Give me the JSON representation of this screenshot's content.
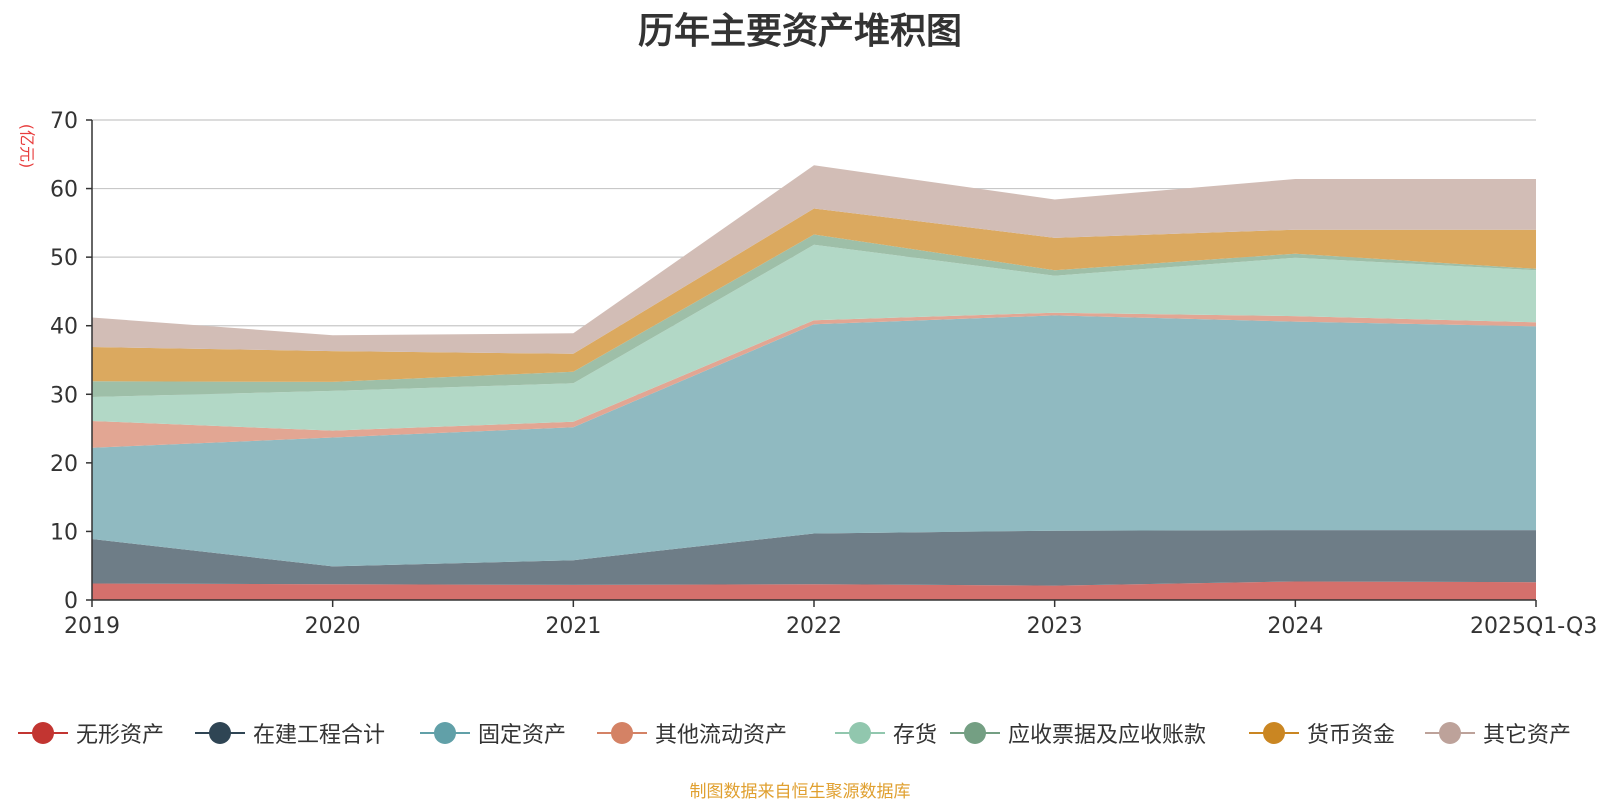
{
  "title": "历年主要资产堆积图",
  "unit_label": "(亿元)",
  "source_note": "制图数据来自恒生聚源数据库",
  "chart_data": {
    "type": "area",
    "stacked": true,
    "title": "历年主要资产堆积图",
    "ylabel": "(亿元)",
    "ylim": [
      0,
      70
    ],
    "yticks": [
      0,
      10,
      20,
      30,
      40,
      50,
      60,
      70
    ],
    "grid": true,
    "legend_position": "bottom",
    "categories": [
      "2019",
      "2020",
      "2021",
      "2022",
      "2023",
      "2024",
      "2025Q1-Q3"
    ],
    "series": [
      {
        "name": "无形资产",
        "color": "#c23531",
        "fill": "#d4706c",
        "values": [
          2.4,
          2.3,
          2.2,
          2.3,
          2.1,
          2.7,
          2.6
        ]
      },
      {
        "name": "在建工程合计",
        "color": "#2f4554",
        "fill": "#6e7d87",
        "values": [
          6.5,
          2.6,
          3.6,
          7.4,
          8.0,
          7.5,
          7.6
        ]
      },
      {
        "name": "固定资产",
        "color": "#61a0a8",
        "fill": "#90bac1",
        "values": [
          13.3,
          18.8,
          19.4,
          30.5,
          31.4,
          30.4,
          29.7
        ]
      },
      {
        "name": "其他流动资产",
        "color": "#d48265",
        "fill": "#e2a693",
        "values": [
          3.9,
          1.0,
          0.8,
          0.6,
          0.4,
          0.8,
          0.6
        ]
      },
      {
        "name": "存货",
        "color": "#91c7ae",
        "fill": "#b2d8c6",
        "values": [
          3.5,
          5.8,
          5.6,
          11.0,
          5.4,
          8.5,
          7.6
        ]
      },
      {
        "name": "应收票据及应收账款",
        "color": "#749f83",
        "fill": "#9ebfa8",
        "values": [
          2.3,
          1.3,
          1.7,
          1.5,
          0.8,
          0.6,
          0.2
        ]
      },
      {
        "name": "货币资金",
        "color": "#ca8622",
        "fill": "#dba95f",
        "values": [
          5.0,
          4.5,
          2.6,
          3.8,
          4.7,
          3.5,
          5.7
        ]
      },
      {
        "name": "其它资产",
        "color": "#bda29a",
        "fill": "#d2bdb6",
        "values": [
          4.3,
          2.3,
          3.0,
          6.3,
          5.6,
          7.4,
          7.4
        ]
      }
    ]
  }
}
